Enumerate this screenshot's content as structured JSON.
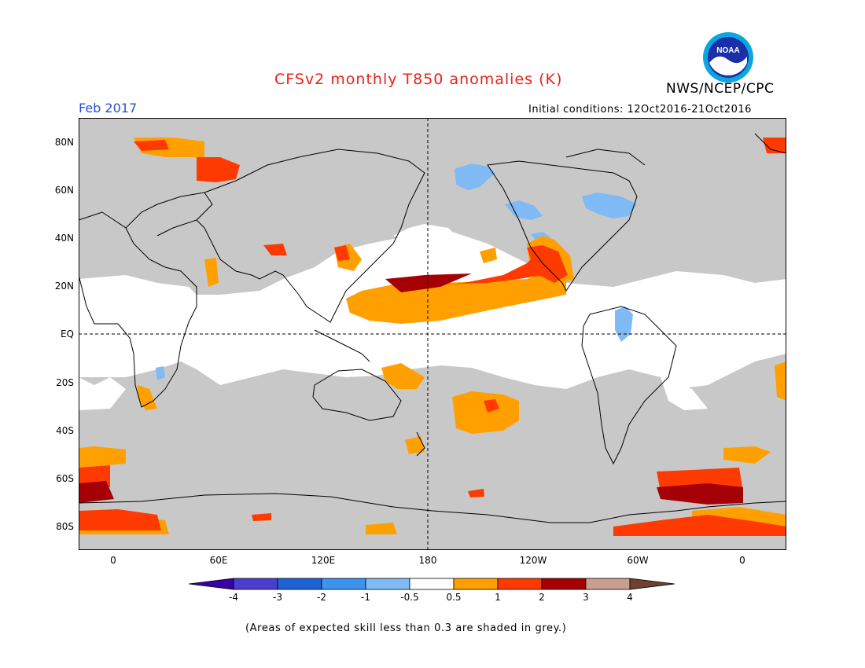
{
  "header": {
    "title": "CFSv2 monthly T850 anomalies (K)",
    "month": "Feb 2017",
    "initial_conditions": "Initial conditions: 12Oct2016-21Oct2016",
    "org": "NWS/NCEP/CPC",
    "logo_text": "NOAA"
  },
  "map": {
    "lat_labels": [
      "80N",
      "60N",
      "40N",
      "20N",
      "EQ",
      "20S",
      "40S",
      "60S",
      "80S"
    ],
    "lon_labels": [
      "0",
      "60E",
      "120E",
      "180",
      "120W",
      "60W",
      "0"
    ]
  },
  "colorbar": {
    "labels": [
      "-4",
      "-3",
      "-2",
      "-1",
      "-0.5",
      "0.5",
      "1",
      "2",
      "3",
      "4"
    ],
    "colors": [
      "#3a00a8",
      "#4a3ed0",
      "#1e62d6",
      "#3d94ee",
      "#7fbaf5",
      "#ffffff",
      "#ffa000",
      "#ff3a00",
      "#a50005",
      "#c8a090",
      "#704030"
    ]
  },
  "footer": {
    "note": "(Areas of expected skill less than 0.3 are shaded in grey.)"
  }
}
